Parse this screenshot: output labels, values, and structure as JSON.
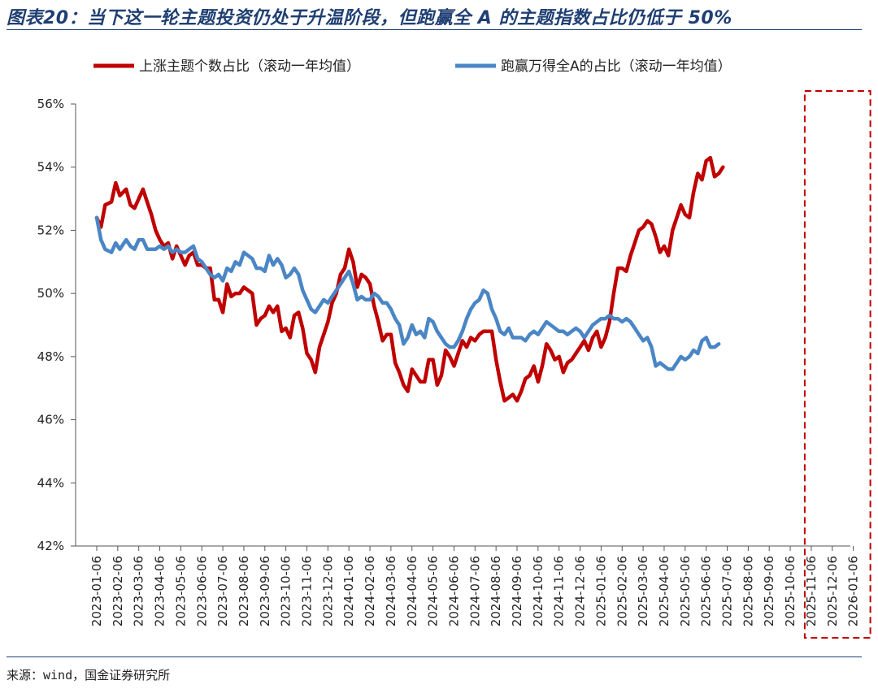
{
  "figure": {
    "title": "图表20：当下这一轮主题投资仍处于升温阶段，但跑赢全 A 的主题指数占比仍低于 50%",
    "source": "来源：wind，国金证券研究所"
  },
  "colors": {
    "series1": "#c00000",
    "series2": "#4a86c5",
    "highlight": "#c00000",
    "title": "#1f3f73"
  },
  "chart_data": {
    "type": "line",
    "ylim": [
      42,
      56
    ],
    "yticks": [
      "42%",
      "44%",
      "46%",
      "48%",
      "50%",
      "52%",
      "54%",
      "56%"
    ],
    "ytick_values": [
      42,
      44,
      46,
      48,
      50,
      52,
      54,
      56
    ],
    "x_tick_labels": [
      "2023-01-06",
      "2023-02-06",
      "2023-03-06",
      "2023-04-06",
      "2023-05-06",
      "2023-06-06",
      "2023-07-06",
      "2023-08-06",
      "2023-09-06",
      "2023-10-06",
      "2023-11-06",
      "2023-12-06",
      "2024-01-06",
      "2024-02-06",
      "2024-03-06",
      "2024-04-06",
      "2024-05-06",
      "2024-06-06",
      "2024-07-06",
      "2024-08-06",
      "2024-09-06",
      "2024-10-06",
      "2024-11-06",
      "2024-12-06",
      "2025-01-06",
      "2025-02-06",
      "2025-03-06",
      "2025-04-06",
      "2025-05-06",
      "2025-06-06",
      "2025-07-06",
      "2025-08-06",
      "2025-09-06",
      "2025-10-06",
      "2025-11-06",
      "2025-12-06",
      "2026-01-06"
    ],
    "legend_position": "top",
    "grid": false,
    "highlight_range": [
      "2025-11-06",
      "2026-01-06"
    ],
    "series": [
      {
        "name": "上涨主题个数占比（滚动一年均值）",
        "color": "#c00000",
        "points": [
          [
            0.0,
            52.4
          ],
          [
            0.2,
            52.1
          ],
          [
            0.4,
            52.8
          ],
          [
            0.7,
            52.9
          ],
          [
            0.9,
            53.5
          ],
          [
            1.1,
            53.1
          ],
          [
            1.4,
            53.3
          ],
          [
            1.6,
            52.8
          ],
          [
            1.8,
            52.7
          ],
          [
            2.0,
            53.0
          ],
          [
            2.2,
            53.3
          ],
          [
            2.4,
            52.9
          ],
          [
            2.6,
            52.5
          ],
          [
            2.8,
            52.0
          ],
          [
            3.0,
            51.7
          ],
          [
            3.2,
            51.5
          ],
          [
            3.4,
            51.6
          ],
          [
            3.6,
            51.1
          ],
          [
            3.8,
            51.5
          ],
          [
            4.0,
            51.2
          ],
          [
            4.2,
            50.9
          ],
          [
            4.4,
            51.2
          ],
          [
            4.6,
            51.3
          ],
          [
            4.8,
            50.9
          ],
          [
            5.0,
            50.9
          ],
          [
            5.2,
            50.8
          ],
          [
            5.4,
            50.8
          ],
          [
            5.6,
            49.8
          ],
          [
            5.8,
            49.8
          ],
          [
            6.0,
            49.4
          ],
          [
            6.2,
            50.3
          ],
          [
            6.4,
            49.9
          ],
          [
            6.6,
            50.0
          ],
          [
            6.8,
            50.0
          ],
          [
            7.0,
            50.2
          ],
          [
            7.2,
            50.1
          ],
          [
            7.4,
            50.0
          ],
          [
            7.6,
            49.0
          ],
          [
            7.8,
            49.2
          ],
          [
            8.0,
            49.3
          ],
          [
            8.2,
            49.6
          ],
          [
            8.4,
            49.4
          ],
          [
            8.6,
            49.6
          ],
          [
            8.8,
            48.8
          ],
          [
            9.0,
            48.9
          ],
          [
            9.2,
            48.6
          ],
          [
            9.4,
            49.3
          ],
          [
            9.6,
            49.4
          ],
          [
            9.8,
            48.9
          ],
          [
            10.0,
            48.1
          ],
          [
            10.2,
            47.9
          ],
          [
            10.4,
            47.5
          ],
          [
            10.6,
            48.3
          ],
          [
            10.8,
            48.7
          ],
          [
            11.0,
            49.1
          ],
          [
            11.2,
            49.7
          ],
          [
            11.4,
            50.0
          ],
          [
            11.6,
            50.6
          ],
          [
            11.8,
            50.8
          ],
          [
            12.0,
            51.4
          ],
          [
            12.2,
            51.0
          ],
          [
            12.4,
            50.2
          ],
          [
            12.6,
            50.6
          ],
          [
            12.8,
            50.5
          ],
          [
            13.0,
            50.3
          ],
          [
            13.2,
            49.6
          ],
          [
            13.4,
            49.1
          ],
          [
            13.6,
            48.5
          ],
          [
            13.8,
            48.7
          ],
          [
            14.0,
            48.7
          ],
          [
            14.2,
            47.8
          ],
          [
            14.4,
            47.5
          ],
          [
            14.6,
            47.1
          ],
          [
            14.8,
            46.9
          ],
          [
            15.0,
            47.6
          ],
          [
            15.2,
            47.4
          ],
          [
            15.4,
            47.2
          ],
          [
            15.6,
            47.2
          ],
          [
            15.8,
            47.9
          ],
          [
            16.0,
            47.9
          ],
          [
            16.2,
            47.1
          ],
          [
            16.4,
            47.4
          ],
          [
            16.6,
            48.2
          ],
          [
            16.8,
            48.0
          ],
          [
            17.0,
            47.7
          ],
          [
            17.2,
            48.1
          ],
          [
            17.4,
            48.5
          ],
          [
            17.6,
            48.3
          ],
          [
            17.8,
            48.6
          ],
          [
            18.0,
            48.5
          ],
          [
            18.2,
            48.7
          ],
          [
            18.4,
            48.8
          ],
          [
            18.6,
            48.8
          ],
          [
            18.8,
            48.8
          ],
          [
            19.0,
            47.9
          ],
          [
            19.2,
            47.2
          ],
          [
            19.4,
            46.6
          ],
          [
            19.6,
            46.7
          ],
          [
            19.8,
            46.8
          ],
          [
            20.0,
            46.6
          ],
          [
            20.2,
            46.9
          ],
          [
            20.4,
            47.3
          ],
          [
            20.6,
            47.4
          ],
          [
            20.8,
            47.7
          ],
          [
            21.0,
            47.2
          ],
          [
            21.2,
            47.7
          ],
          [
            21.4,
            48.4
          ],
          [
            21.6,
            48.2
          ],
          [
            21.8,
            47.9
          ],
          [
            22.0,
            48.0
          ],
          [
            22.2,
            47.5
          ],
          [
            22.4,
            47.8
          ],
          [
            22.6,
            47.9
          ],
          [
            22.8,
            48.1
          ],
          [
            23.0,
            48.3
          ],
          [
            23.2,
            48.5
          ],
          [
            23.4,
            48.2
          ],
          [
            23.6,
            48.6
          ],
          [
            23.8,
            48.8
          ],
          [
            24.0,
            48.3
          ],
          [
            24.2,
            48.6
          ],
          [
            24.4,
            49.1
          ],
          [
            24.6,
            50.0
          ],
          [
            24.8,
            50.8
          ],
          [
            25.0,
            50.8
          ],
          [
            25.2,
            50.7
          ],
          [
            25.4,
            51.2
          ],
          [
            25.6,
            51.6
          ],
          [
            25.8,
            52.0
          ],
          [
            26.0,
            52.1
          ],
          [
            26.2,
            52.3
          ],
          [
            26.4,
            52.2
          ],
          [
            26.6,
            51.8
          ],
          [
            26.8,
            51.3
          ],
          [
            27.0,
            51.5
          ],
          [
            27.2,
            51.2
          ],
          [
            27.4,
            52.0
          ],
          [
            27.6,
            52.4
          ],
          [
            27.8,
            52.8
          ],
          [
            28.0,
            52.5
          ],
          [
            28.2,
            52.4
          ],
          [
            28.4,
            53.2
          ],
          [
            28.6,
            53.8
          ],
          [
            28.8,
            53.6
          ],
          [
            29.0,
            54.2
          ],
          [
            29.2,
            54.3
          ],
          [
            29.4,
            53.7
          ],
          [
            29.6,
            53.8
          ],
          [
            29.8,
            54.0
          ]
        ]
      },
      {
        "name": "跑赢万得全A的占比（滚动一年均值）",
        "color": "#4a86c5",
        "points": [
          [
            0.0,
            52.4
          ],
          [
            0.2,
            51.7
          ],
          [
            0.4,
            51.4
          ],
          [
            0.7,
            51.3
          ],
          [
            0.9,
            51.6
          ],
          [
            1.1,
            51.4
          ],
          [
            1.4,
            51.7
          ],
          [
            1.6,
            51.5
          ],
          [
            1.8,
            51.4
          ],
          [
            2.0,
            51.7
          ],
          [
            2.2,
            51.7
          ],
          [
            2.4,
            51.4
          ],
          [
            2.6,
            51.4
          ],
          [
            2.8,
            51.4
          ],
          [
            3.0,
            51.5
          ],
          [
            3.2,
            51.4
          ],
          [
            3.4,
            51.5
          ],
          [
            3.6,
            51.3
          ],
          [
            3.8,
            51.4
          ],
          [
            4.0,
            51.3
          ],
          [
            4.2,
            51.3
          ],
          [
            4.4,
            51.4
          ],
          [
            4.6,
            51.5
          ],
          [
            4.8,
            51.1
          ],
          [
            5.0,
            51.0
          ],
          [
            5.2,
            50.8
          ],
          [
            5.4,
            50.6
          ],
          [
            5.6,
            50.5
          ],
          [
            5.8,
            50.6
          ],
          [
            6.0,
            50.4
          ],
          [
            6.2,
            50.8
          ],
          [
            6.4,
            50.7
          ],
          [
            6.6,
            51.0
          ],
          [
            6.8,
            50.9
          ],
          [
            7.0,
            51.3
          ],
          [
            7.2,
            51.2
          ],
          [
            7.4,
            51.1
          ],
          [
            7.6,
            50.8
          ],
          [
            7.8,
            50.8
          ],
          [
            8.0,
            50.7
          ],
          [
            8.2,
            51.2
          ],
          [
            8.4,
            50.9
          ],
          [
            8.6,
            51.1
          ],
          [
            8.8,
            50.9
          ],
          [
            9.0,
            50.5
          ],
          [
            9.2,
            50.6
          ],
          [
            9.4,
            50.8
          ],
          [
            9.6,
            50.6
          ],
          [
            9.8,
            50.1
          ],
          [
            10.0,
            49.8
          ],
          [
            10.2,
            49.5
          ],
          [
            10.4,
            49.4
          ],
          [
            10.6,
            49.6
          ],
          [
            10.8,
            49.8
          ],
          [
            11.0,
            49.7
          ],
          [
            11.2,
            49.9
          ],
          [
            11.4,
            50.1
          ],
          [
            11.6,
            50.3
          ],
          [
            11.8,
            50.5
          ],
          [
            12.0,
            50.7
          ],
          [
            12.2,
            50.3
          ],
          [
            12.4,
            49.8
          ],
          [
            12.6,
            49.9
          ],
          [
            12.8,
            49.8
          ],
          [
            13.0,
            49.8
          ],
          [
            13.2,
            50.0
          ],
          [
            13.4,
            49.9
          ],
          [
            13.6,
            49.7
          ],
          [
            13.8,
            49.7
          ],
          [
            14.0,
            49.5
          ],
          [
            14.2,
            49.2
          ],
          [
            14.4,
            49.0
          ],
          [
            14.6,
            48.4
          ],
          [
            14.8,
            48.6
          ],
          [
            15.0,
            49.0
          ],
          [
            15.2,
            48.7
          ],
          [
            15.4,
            48.8
          ],
          [
            15.6,
            48.6
          ],
          [
            15.8,
            49.2
          ],
          [
            16.0,
            49.1
          ],
          [
            16.2,
            48.8
          ],
          [
            16.4,
            48.6
          ],
          [
            16.6,
            48.4
          ],
          [
            16.8,
            48.3
          ],
          [
            17.0,
            48.3
          ],
          [
            17.2,
            48.5
          ],
          [
            17.4,
            48.8
          ],
          [
            17.6,
            49.2
          ],
          [
            17.8,
            49.5
          ],
          [
            18.0,
            49.7
          ],
          [
            18.2,
            49.8
          ],
          [
            18.4,
            50.1
          ],
          [
            18.6,
            50.0
          ],
          [
            18.8,
            49.5
          ],
          [
            19.0,
            49.2
          ],
          [
            19.2,
            48.8
          ],
          [
            19.4,
            48.7
          ],
          [
            19.6,
            48.9
          ],
          [
            19.8,
            48.6
          ],
          [
            20.0,
            48.6
          ],
          [
            20.2,
            48.6
          ],
          [
            20.4,
            48.5
          ],
          [
            20.6,
            48.7
          ],
          [
            20.8,
            48.8
          ],
          [
            21.0,
            48.7
          ],
          [
            21.2,
            48.9
          ],
          [
            21.4,
            49.1
          ],
          [
            21.6,
            49.0
          ],
          [
            21.8,
            48.9
          ],
          [
            22.0,
            48.8
          ],
          [
            22.2,
            48.8
          ],
          [
            22.4,
            48.7
          ],
          [
            22.6,
            48.8
          ],
          [
            22.8,
            48.9
          ],
          [
            23.0,
            48.8
          ],
          [
            23.2,
            48.6
          ],
          [
            23.4,
            48.8
          ],
          [
            23.6,
            49.0
          ],
          [
            23.8,
            49.1
          ],
          [
            24.0,
            49.2
          ],
          [
            24.2,
            49.2
          ],
          [
            24.4,
            49.3
          ],
          [
            24.6,
            49.2
          ],
          [
            24.8,
            49.2
          ],
          [
            25.0,
            49.1
          ],
          [
            25.2,
            49.2
          ],
          [
            25.4,
            49.1
          ],
          [
            25.6,
            48.9
          ],
          [
            25.8,
            48.7
          ],
          [
            26.0,
            48.5
          ],
          [
            26.2,
            48.6
          ],
          [
            26.4,
            48.3
          ],
          [
            26.6,
            47.7
          ],
          [
            26.8,
            47.8
          ],
          [
            27.0,
            47.7
          ],
          [
            27.2,
            47.6
          ],
          [
            27.4,
            47.6
          ],
          [
            27.6,
            47.8
          ],
          [
            27.8,
            48.0
          ],
          [
            28.0,
            47.9
          ],
          [
            28.2,
            48.0
          ],
          [
            28.4,
            48.2
          ],
          [
            28.6,
            48.1
          ],
          [
            28.8,
            48.5
          ],
          [
            29.0,
            48.6
          ],
          [
            29.2,
            48.3
          ],
          [
            29.4,
            48.3
          ],
          [
            29.6,
            48.4
          ]
        ]
      }
    ]
  }
}
